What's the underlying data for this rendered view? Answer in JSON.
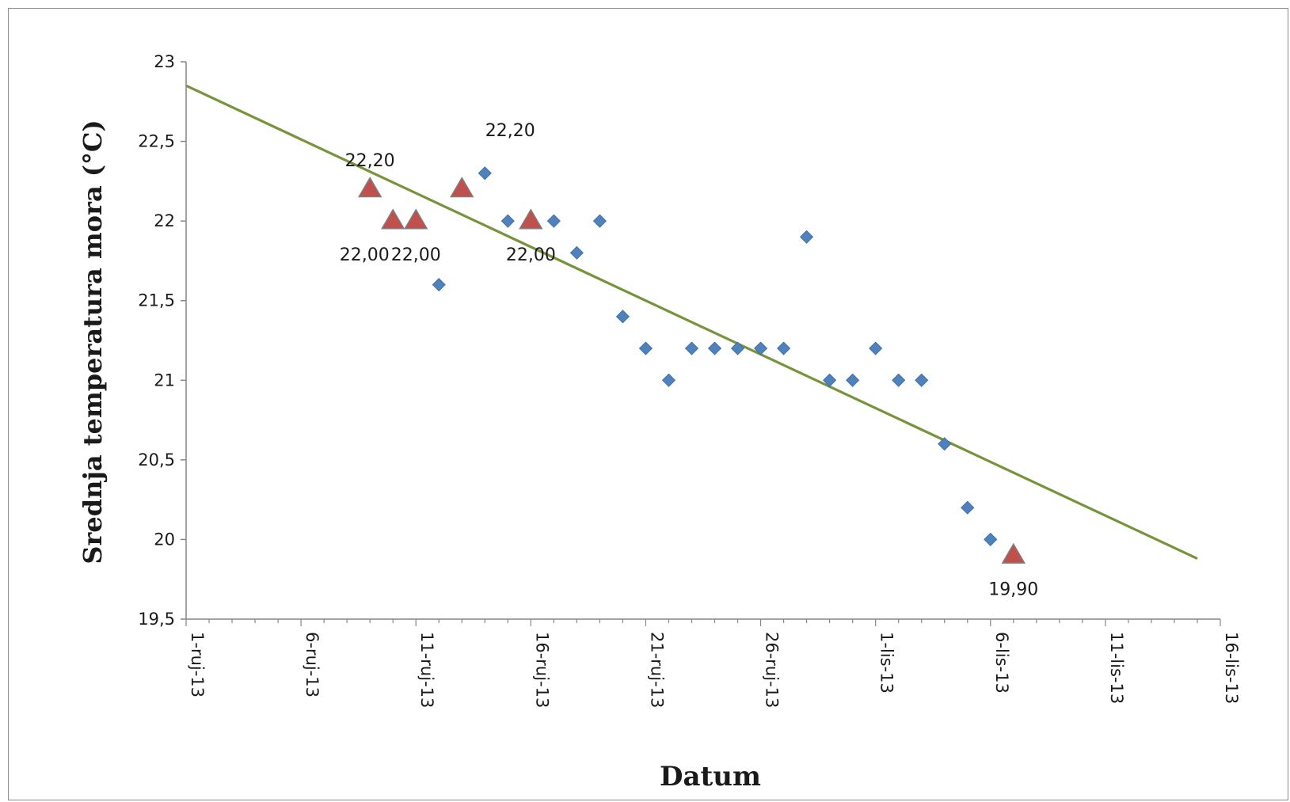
{
  "chart_data": {
    "type": "scatter",
    "title": "",
    "xlabel": "Datum",
    "ylabel": "Srednja temperatura mora (°C)",
    "ylim": [
      19.5,
      23
    ],
    "y_ticks": [
      "23",
      "22,5",
      "22",
      "21,5",
      "21",
      "20,5",
      "20",
      "19,5"
    ],
    "xlim": [
      "2013-09-01",
      "2013-10-16"
    ],
    "x_ticks": [
      "1-ruj-13",
      "6-ruj-13",
      "11-ruj-13",
      "16-ruj-13",
      "21-ruj-13",
      "26-ruj-13",
      "1-lis-13",
      "6-lis-13",
      "11-lis-13",
      "16-lis-13"
    ],
    "grid": false,
    "legend": "none",
    "series": [
      {
        "marker": "diamond",
        "color": "#4f81bd",
        "points": [
          {
            "x": "2013-09-12",
            "y": 21.6
          },
          {
            "x": "2013-09-14",
            "y": 22.3
          },
          {
            "x": "2013-09-15",
            "y": 22.0
          },
          {
            "x": "2013-09-17",
            "y": 22.0
          },
          {
            "x": "2013-09-18",
            "y": 21.8
          },
          {
            "x": "2013-09-19",
            "y": 22.0
          },
          {
            "x": "2013-09-20",
            "y": 21.4
          },
          {
            "x": "2013-09-21",
            "y": 21.2
          },
          {
            "x": "2013-09-22",
            "y": 21.0
          },
          {
            "x": "2013-09-23",
            "y": 21.2
          },
          {
            "x": "2013-09-24",
            "y": 21.2
          },
          {
            "x": "2013-09-25",
            "y": 21.2
          },
          {
            "x": "2013-09-26",
            "y": 21.2
          },
          {
            "x": "2013-09-27",
            "y": 21.2
          },
          {
            "x": "2013-09-28",
            "y": 21.9
          },
          {
            "x": "2013-09-29",
            "y": 21.0
          },
          {
            "x": "2013-09-30",
            "y": 21.0
          },
          {
            "x": "2013-10-01",
            "y": 21.2
          },
          {
            "x": "2013-10-02",
            "y": 21.0
          },
          {
            "x": "2013-10-03",
            "y": 21.0
          },
          {
            "x": "2013-10-04",
            "y": 20.6
          },
          {
            "x": "2013-10-05",
            "y": 20.2
          },
          {
            "x": "2013-10-06",
            "y": 20.0
          }
        ]
      },
      {
        "marker": "triangle",
        "color": "#c0504d",
        "points": [
          {
            "x": "2013-09-09",
            "y": 22.2,
            "label": "22,20",
            "label_pos": "above"
          },
          {
            "x": "2013-09-10",
            "y": 22.0,
            "label": "22,00",
            "label_pos": "below-left"
          },
          {
            "x": "2013-09-11",
            "y": 22.0,
            "label": "22,00",
            "label_pos": "below"
          },
          {
            "x": "2013-09-13",
            "y": 22.2,
            "label": "22,20",
            "label_pos": "above-right"
          },
          {
            "x": "2013-09-16",
            "y": 22.0,
            "label": "22,00",
            "label_pos": "below"
          },
          {
            "x": "2013-10-07",
            "y": 19.9,
            "label": "19,90",
            "label_pos": "below"
          }
        ]
      }
    ],
    "trendline": {
      "type": "linear",
      "color": "#77933c",
      "from": {
        "x": "2013-09-01",
        "y": 22.85
      },
      "to": {
        "x": "2013-10-15",
        "y": 19.88
      }
    }
  }
}
